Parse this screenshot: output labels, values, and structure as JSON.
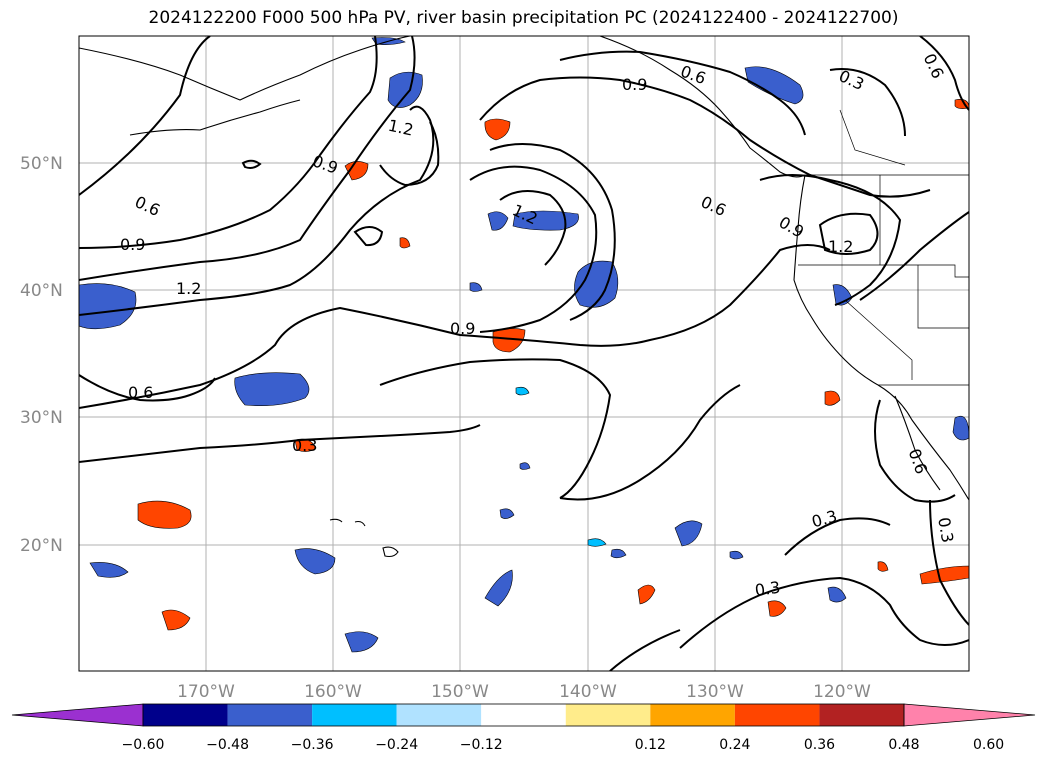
{
  "title": "2024122200 F000 500 hPa PV, river basin precipitation PC (2024122400 - 2024122700)",
  "lat_labels": [
    "50°N",
    "40°N",
    "30°N",
    "20°N"
  ],
  "lon_labels": [
    "170°W",
    "160°W",
    "150°W",
    "140°W",
    "130°W",
    "120°W"
  ],
  "colorbar": {
    "tick_labels": [
      "−0.60",
      "−0.48",
      "−0.36",
      "−0.24",
      "−0.12",
      "0.12",
      "0.24",
      "0.36",
      "0.48",
      "0.60"
    ],
    "colors": [
      "#9b30d0",
      "#00008b",
      "#3a5fcd",
      "#00bfff",
      "#b0e2ff",
      "#ffffff",
      "#ffec8b",
      "#ffa500",
      "#ff4500",
      "#b22222",
      "#ff82ab"
    ]
  },
  "contour_labels": [
    "0.3",
    "0.6",
    "0.9",
    "1.2"
  ],
  "legend_colors": {
    "coast": "#000000",
    "grid": "#b0b0b0"
  }
}
